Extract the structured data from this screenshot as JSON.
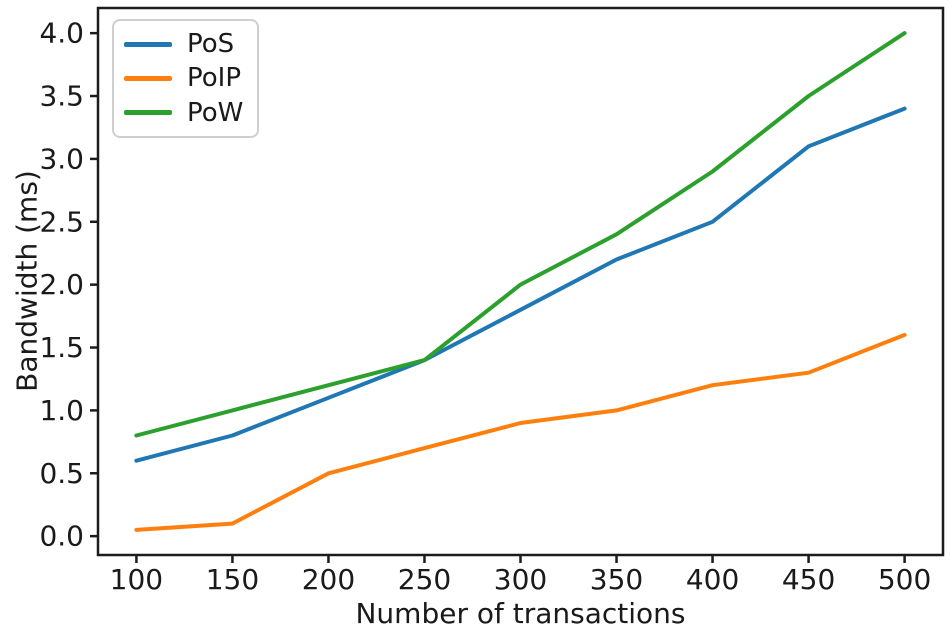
{
  "chart_data": {
    "type": "line",
    "title": "",
    "xlabel": "Number of transactions",
    "ylabel": "Bandwidth (ms)",
    "x": [
      100,
      150,
      200,
      250,
      300,
      350,
      400,
      450,
      500
    ],
    "series": [
      {
        "name": "PoS",
        "color": "#1f77b4",
        "values": [
          0.6,
          0.8,
          1.1,
          1.4,
          1.8,
          2.2,
          2.5,
          3.1,
          3.4
        ]
      },
      {
        "name": "PoIP",
        "color": "#ff7f0e",
        "values": [
          0.05,
          0.1,
          0.5,
          0.7,
          0.9,
          1.0,
          1.2,
          1.3,
          1.6
        ]
      },
      {
        "name": "PoW",
        "color": "#2ca02c",
        "values": [
          0.8,
          1.0,
          1.2,
          1.4,
          2.0,
          2.4,
          2.9,
          3.5,
          4.0
        ]
      }
    ],
    "xtick_labels": [
      "100",
      "150",
      "200",
      "250",
      "300",
      "350",
      "400",
      "450",
      "500"
    ],
    "ytick_labels": [
      "0.0",
      "0.5",
      "1.0",
      "1.5",
      "2.0",
      "2.5",
      "3.0",
      "3.5",
      "4.0"
    ],
    "xlim": [
      80,
      520
    ],
    "ylim": [
      -0.15,
      4.2
    ],
    "grid": false,
    "legend_position": "upper left",
    "axis_color": "#1c1c1c"
  }
}
